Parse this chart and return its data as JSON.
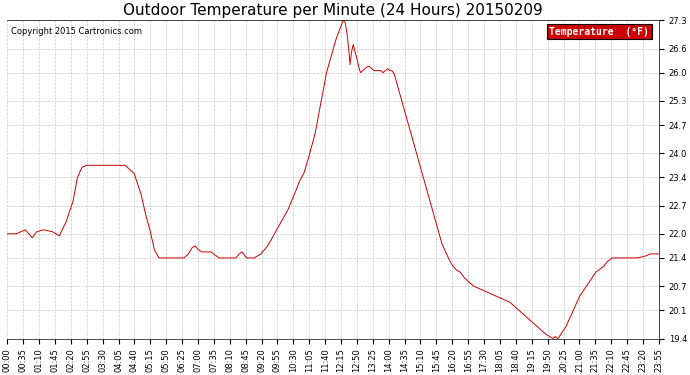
{
  "title": "Outdoor Temperature per Minute (24 Hours) 20150209",
  "copyright": "Copyright 2015 Cartronics.com",
  "legend_label": "Temperature  (°F)",
  "legend_bg": "#cc0000",
  "legend_text_color": "#ffffff",
  "line_color": "#cc0000",
  "background_color": "#ffffff",
  "grid_color": "#bbbbbb",
  "ylim": [
    19.4,
    27.3
  ],
  "yticks": [
    19.4,
    20.1,
    20.7,
    21.4,
    22.0,
    22.7,
    23.4,
    24.0,
    24.7,
    25.3,
    26.0,
    26.6,
    27.3
  ],
  "xtick_labels": [
    "00:00",
    "00:35",
    "01:10",
    "01:45",
    "02:20",
    "02:55",
    "03:30",
    "04:05",
    "04:40",
    "05:15",
    "05:50",
    "06:25",
    "07:00",
    "07:35",
    "08:10",
    "08:45",
    "09:20",
    "09:55",
    "10:30",
    "11:05",
    "11:40",
    "12:15",
    "12:50",
    "13:25",
    "14:00",
    "14:35",
    "15:10",
    "15:45",
    "16:20",
    "16:55",
    "17:30",
    "18:05",
    "18:40",
    "19:15",
    "19:50",
    "20:25",
    "21:00",
    "21:35",
    "22:10",
    "22:45",
    "23:20",
    "23:55"
  ],
  "title_fontsize": 11,
  "tick_fontsize": 6,
  "copyright_fontsize": 6,
  "legend_fontsize": 7,
  "keypoints": [
    [
      0,
      22.0
    ],
    [
      20,
      22.0
    ],
    [
      40,
      22.1
    ],
    [
      55,
      21.9
    ],
    [
      65,
      22.05
    ],
    [
      80,
      22.1
    ],
    [
      100,
      22.05
    ],
    [
      115,
      21.95
    ],
    [
      130,
      22.3
    ],
    [
      145,
      22.8
    ],
    [
      155,
      23.4
    ],
    [
      165,
      23.65
    ],
    [
      175,
      23.7
    ],
    [
      185,
      23.7
    ],
    [
      200,
      23.7
    ],
    [
      215,
      23.7
    ],
    [
      230,
      23.7
    ],
    [
      245,
      23.7
    ],
    [
      260,
      23.7
    ],
    [
      270,
      23.6
    ],
    [
      280,
      23.5
    ],
    [
      295,
      23.0
    ],
    [
      305,
      22.5
    ],
    [
      315,
      22.1
    ],
    [
      325,
      21.6
    ],
    [
      335,
      21.4
    ],
    [
      345,
      21.4
    ],
    [
      360,
      21.4
    ],
    [
      375,
      21.4
    ],
    [
      390,
      21.4
    ],
    [
      400,
      21.5
    ],
    [
      408,
      21.65
    ],
    [
      415,
      21.7
    ],
    [
      422,
      21.6
    ],
    [
      430,
      21.55
    ],
    [
      440,
      21.55
    ],
    [
      450,
      21.55
    ],
    [
      455,
      21.5
    ],
    [
      462,
      21.45
    ],
    [
      468,
      21.4
    ],
    [
      475,
      21.4
    ],
    [
      485,
      21.4
    ],
    [
      495,
      21.4
    ],
    [
      505,
      21.4
    ],
    [
      512,
      21.5
    ],
    [
      518,
      21.55
    ],
    [
      522,
      21.5
    ],
    [
      528,
      21.4
    ],
    [
      535,
      21.4
    ],
    [
      545,
      21.4
    ],
    [
      560,
      21.5
    ],
    [
      575,
      21.7
    ],
    [
      590,
      22.0
    ],
    [
      605,
      22.3
    ],
    [
      620,
      22.6
    ],
    [
      635,
      23.0
    ],
    [
      645,
      23.3
    ],
    [
      655,
      23.5
    ],
    [
      663,
      23.8
    ],
    [
      668,
      24.0
    ],
    [
      673,
      24.2
    ],
    [
      680,
      24.5
    ],
    [
      685,
      24.8
    ],
    [
      690,
      25.1
    ],
    [
      695,
      25.4
    ],
    [
      700,
      25.7
    ],
    [
      705,
      26.0
    ],
    [
      710,
      26.2
    ],
    [
      715,
      26.4
    ],
    [
      720,
      26.6
    ],
    [
      725,
      26.8
    ],
    [
      730,
      26.95
    ],
    [
      735,
      27.1
    ],
    [
      740,
      27.25
    ],
    [
      743,
      27.3
    ],
    [
      746,
      27.25
    ],
    [
      750,
      27.0
    ],
    [
      754,
      26.6
    ],
    [
      757,
      26.2
    ],
    [
      760,
      26.5
    ],
    [
      764,
      26.7
    ],
    [
      767,
      26.55
    ],
    [
      771,
      26.4
    ],
    [
      775,
      26.2
    ],
    [
      780,
      26.0
    ],
    [
      785,
      26.05
    ],
    [
      790,
      26.1
    ],
    [
      795,
      26.15
    ],
    [
      800,
      26.15
    ],
    [
      805,
      26.1
    ],
    [
      810,
      26.05
    ],
    [
      815,
      26.05
    ],
    [
      820,
      26.05
    ],
    [
      825,
      26.05
    ],
    [
      830,
      26.0
    ],
    [
      835,
      26.05
    ],
    [
      840,
      26.1
    ],
    [
      845,
      26.05
    ],
    [
      850,
      26.05
    ],
    [
      855,
      25.95
    ],
    [
      860,
      25.75
    ],
    [
      865,
      25.55
    ],
    [
      870,
      25.35
    ],
    [
      875,
      25.15
    ],
    [
      880,
      24.95
    ],
    [
      885,
      24.75
    ],
    [
      890,
      24.55
    ],
    [
      895,
      24.35
    ],
    [
      900,
      24.15
    ],
    [
      905,
      23.95
    ],
    [
      910,
      23.75
    ],
    [
      915,
      23.55
    ],
    [
      920,
      23.35
    ],
    [
      925,
      23.15
    ],
    [
      930,
      22.95
    ],
    [
      935,
      22.75
    ],
    [
      940,
      22.55
    ],
    [
      945,
      22.35
    ],
    [
      950,
      22.15
    ],
    [
      955,
      21.95
    ],
    [
      960,
      21.75
    ],
    [
      968,
      21.55
    ],
    [
      976,
      21.35
    ],
    [
      984,
      21.2
    ],
    [
      992,
      21.1
    ],
    [
      1000,
      21.05
    ],
    [
      1010,
      20.9
    ],
    [
      1020,
      20.8
    ],
    [
      1030,
      20.7
    ],
    [
      1040,
      20.65
    ],
    [
      1050,
      20.6
    ],
    [
      1060,
      20.55
    ],
    [
      1070,
      20.5
    ],
    [
      1080,
      20.45
    ],
    [
      1090,
      20.4
    ],
    [
      1100,
      20.35
    ],
    [
      1110,
      20.3
    ],
    [
      1120,
      20.2
    ],
    [
      1130,
      20.1
    ],
    [
      1140,
      20.0
    ],
    [
      1150,
      19.9
    ],
    [
      1160,
      19.8
    ],
    [
      1170,
      19.7
    ],
    [
      1180,
      19.6
    ],
    [
      1190,
      19.5
    ],
    [
      1198,
      19.45
    ],
    [
      1205,
      19.4
    ],
    [
      1210,
      19.45
    ],
    [
      1215,
      19.4
    ],
    [
      1218,
      19.42
    ],
    [
      1222,
      19.5
    ],
    [
      1228,
      19.6
    ],
    [
      1234,
      19.7
    ],
    [
      1240,
      19.85
    ],
    [
      1246,
      20.0
    ],
    [
      1252,
      20.15
    ],
    [
      1258,
      20.3
    ],
    [
      1264,
      20.45
    ],
    [
      1270,
      20.55
    ],
    [
      1276,
      20.65
    ],
    [
      1282,
      20.75
    ],
    [
      1288,
      20.85
    ],
    [
      1294,
      20.95
    ],
    [
      1300,
      21.05
    ],
    [
      1306,
      21.1
    ],
    [
      1312,
      21.15
    ],
    [
      1318,
      21.2
    ],
    [
      1324,
      21.3
    ],
    [
      1330,
      21.35
    ],
    [
      1336,
      21.4
    ],
    [
      1342,
      21.4
    ],
    [
      1350,
      21.4
    ],
    [
      1360,
      21.4
    ],
    [
      1370,
      21.4
    ],
    [
      1380,
      21.4
    ],
    [
      1390,
      21.4
    ],
    [
      1400,
      21.42
    ],
    [
      1410,
      21.45
    ],
    [
      1420,
      21.5
    ],
    [
      1430,
      21.5
    ],
    [
      1439,
      21.5
    ]
  ]
}
